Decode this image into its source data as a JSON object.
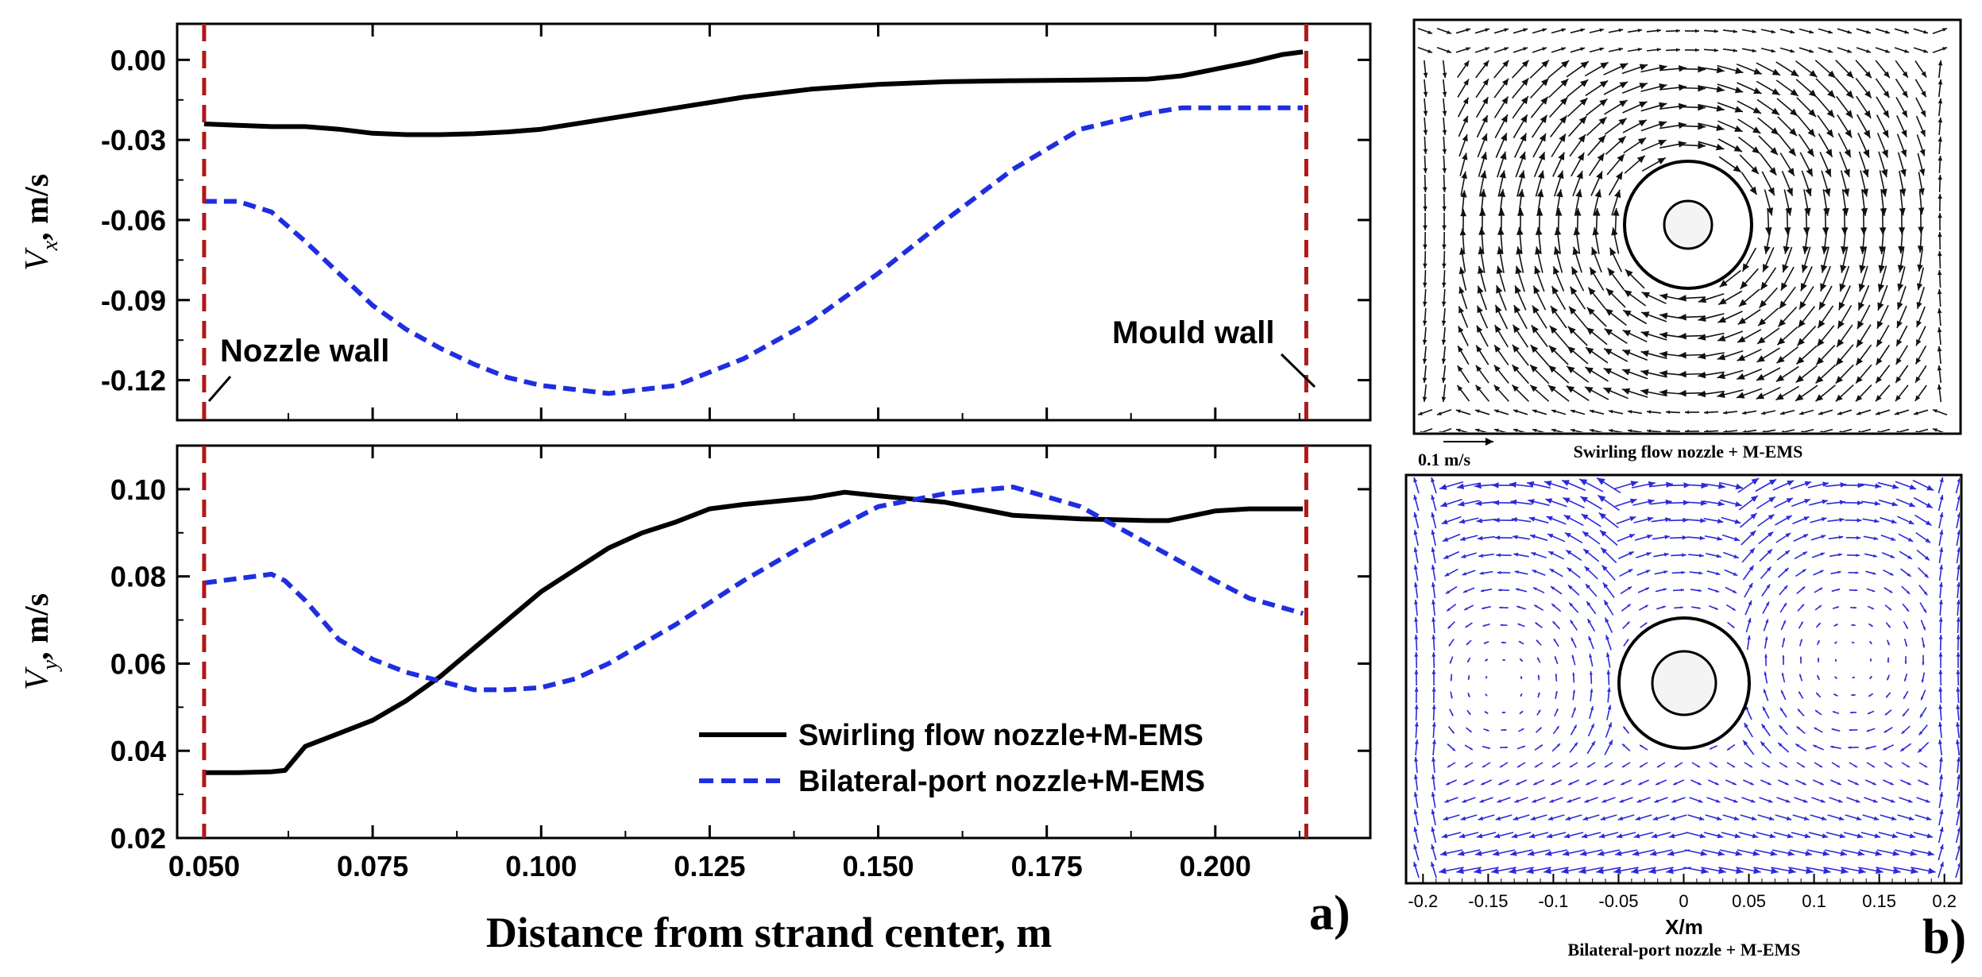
{
  "chart_data": [
    {
      "type": "line",
      "panel": "a) top",
      "x": [
        0.05,
        0.055,
        0.06,
        0.065,
        0.07,
        0.075,
        0.08,
        0.085,
        0.09,
        0.095,
        0.1,
        0.11,
        0.12,
        0.13,
        0.14,
        0.15,
        0.16,
        0.17,
        0.18,
        0.19,
        0.195,
        0.2,
        0.205,
        0.21,
        0.213
      ],
      "series": [
        {
          "name": "Swirling flow nozzle+M-EMS",
          "style": "solid",
          "color": "#000000",
          "values": [
            -0.024,
            -0.0245,
            -0.025,
            -0.025,
            -0.026,
            -0.0275,
            -0.028,
            -0.028,
            -0.0277,
            -0.027,
            -0.026,
            -0.022,
            -0.018,
            -0.014,
            -0.011,
            -0.0092,
            -0.0082,
            -0.0078,
            -0.0076,
            -0.0072,
            -0.006,
            -0.0035,
            -0.001,
            0.002,
            0.003
          ]
        },
        {
          "name": "Bilateral-port nozzle+M-EMS",
          "style": "dashed",
          "color": "#1f2ee0",
          "values": [
            -0.053,
            -0.053,
            -0.057,
            -0.068,
            -0.08,
            -0.092,
            -0.101,
            -0.108,
            -0.114,
            -0.119,
            -0.122,
            -0.125,
            -0.122,
            -0.112,
            -0.098,
            -0.08,
            -0.06,
            -0.041,
            -0.026,
            -0.02,
            -0.018,
            -0.018,
            -0.018,
            -0.018,
            -0.018
          ]
        }
      ],
      "ylabel": "V_x, m/s",
      "ylim": [
        -0.135,
        0.0135
      ],
      "yticks": [
        "0.00",
        "-0.03",
        "-0.06",
        "-0.09",
        "-0.12"
      ],
      "xlim": [
        0.046,
        0.223
      ]
    },
    {
      "type": "line",
      "panel": "a) bottom",
      "x": [
        0.05,
        0.055,
        0.06,
        0.062,
        0.065,
        0.07,
        0.075,
        0.08,
        0.085,
        0.09,
        0.095,
        0.1,
        0.105,
        0.11,
        0.115,
        0.12,
        0.125,
        0.13,
        0.14,
        0.145,
        0.15,
        0.16,
        0.17,
        0.18,
        0.19,
        0.193,
        0.2,
        0.205,
        0.213
      ],
      "series": [
        {
          "name": "Swirling flow nozzle+M-EMS",
          "style": "solid",
          "color": "#000000",
          "values": [
            0.035,
            0.035,
            0.0352,
            0.0355,
            0.041,
            0.044,
            0.047,
            0.0515,
            0.057,
            0.0635,
            0.07,
            0.0765,
            0.0815,
            0.0865,
            0.09,
            0.0925,
            0.0955,
            0.0965,
            0.098,
            0.0993,
            0.0985,
            0.097,
            0.094,
            0.0932,
            0.0928,
            0.0928,
            0.095,
            0.0955,
            0.0955
          ]
        },
        {
          "name": "Bilateral-port nozzle+M-EMS",
          "style": "dashed",
          "color": "#1f2ee0",
          "values": [
            0.0785,
            0.0795,
            0.0805,
            0.079,
            0.0745,
            0.0655,
            0.061,
            0.058,
            0.056,
            0.054,
            0.054,
            0.0545,
            0.0565,
            0.06,
            0.0645,
            0.069,
            0.074,
            0.079,
            0.088,
            0.092,
            0.096,
            0.099,
            0.1005,
            0.096,
            0.0875,
            0.085,
            0.079,
            0.075,
            0.0715
          ]
        }
      ],
      "ylabel": "V_y, m/s",
      "ylim": [
        0.02,
        0.11
      ],
      "yticks": [
        "0.10",
        "0.08",
        "0.06",
        "0.04",
        "0.02"
      ],
      "xlim": [
        0.046,
        0.223
      ],
      "xticks": [
        "0.050",
        "0.075",
        "0.100",
        "0.125",
        "0.150",
        "0.175",
        "0.200"
      ],
      "xlabel": "Distance from strand center, m"
    }
  ],
  "panel_a": {
    "x_data_min": 0.046,
    "x_data_max": 0.223,
    "x_tick_values": [
      0.05,
      0.075,
      0.1,
      0.125,
      0.15,
      0.175,
      0.2
    ],
    "x_minor_step": 0.0125,
    "top_tick_values": [
      0.0,
      -0.03,
      -0.06,
      -0.09,
      -0.12
    ],
    "top_minor_step": 0.015,
    "bottom_tick_values": [
      0.1,
      0.08,
      0.06,
      0.04,
      0.02
    ],
    "bottom_minor_step": 0.01,
    "wall_positions": [
      0.05,
      0.2135
    ],
    "wall_color": "#b01818",
    "label": "a)"
  },
  "annotations": {
    "nozzle_wall": "Nozzle wall",
    "mould_wall": "Mould wall"
  },
  "labels": {
    "ylabel_top_main": "V",
    "ylabel_top_sub": "x",
    "ylabel_top_rest": ", m/s",
    "ylabel_bottom_main": "V",
    "ylabel_bottom_sub": "y",
    "ylabel_bottom_rest": ", m/s",
    "xlabel": "Distance from strand center, m"
  },
  "legend": [
    {
      "name": "Swirling flow nozzle+M-EMS",
      "style": "solid"
    },
    {
      "name": "Bilateral-port nozzle+M-EMS",
      "style": "dashed"
    }
  ],
  "panel_b": {
    "scale_label": "0.1 m/s",
    "top_caption": "Swirling flow nozzle + M-EMS",
    "bottom_caption": "Bilateral-port nozzle + M-EMS",
    "x_ticks": [
      "-0.2",
      "-0.15",
      "-0.1",
      "-0.05",
      "0",
      "0.05",
      "0.1",
      "0.15",
      "0.2"
    ],
    "x_tick_values": [
      -0.2,
      -0.15,
      -0.1,
      -0.05,
      0,
      0.05,
      0.1,
      0.15,
      0.2
    ],
    "x_min": -0.213,
    "x_max": 0.213,
    "xlabel": "X/m",
    "label": "b)",
    "top_color": "#111111",
    "bottom_color": "#2a2ad8"
  }
}
